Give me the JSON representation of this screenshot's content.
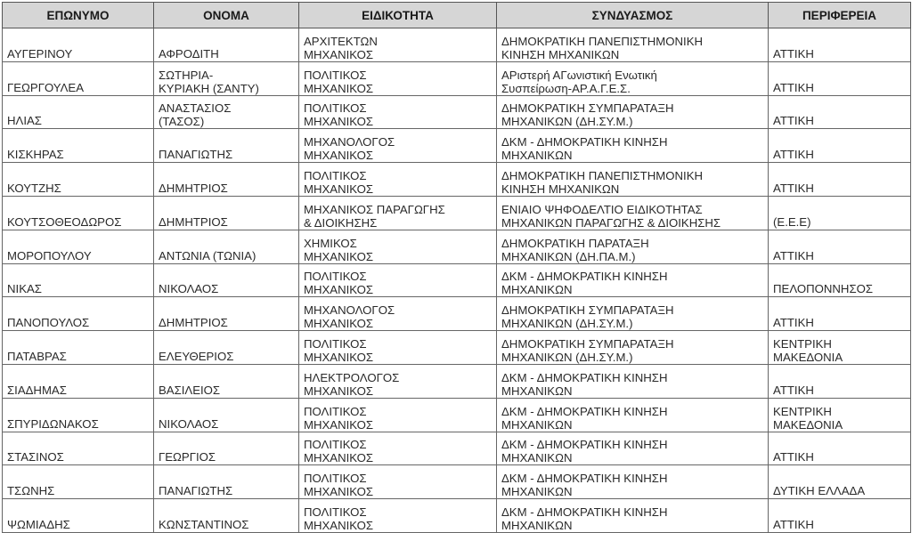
{
  "columns": [
    "ΕΠΩΝΥΜΟ",
    "ΟΝΟΜΑ",
    "ΕΙΔΙΚΟΤΗΤΑ",
    "ΣΥΝΔΥΑΣΜΟΣ",
    "ΠΕΡΙΦΕΡΕΙΑ"
  ],
  "rows": [
    [
      "ΑΥΓΕΡΙΝΟΥ",
      "ΑΦΡΟΔΙΤΗ",
      "ΑΡΧΙΤΕΚΤΩΝ\nΜΗΧΑΝΙΚΟΣ",
      "ΔΗΜΟΚΡΑΤΙΚΗ ΠΑΝΕΠΙΣΤΗΜΟΝΙΚΗ\nΚΙΝΗΣΗ ΜΗΧΑΝΙΚΩΝ",
      "ΑΤΤΙΚΗ"
    ],
    [
      "ΓΕΩΡΓΟΥΛΕΑ",
      "ΣΩΤΗΡΙΑ-\nΚΥΡΙΑΚΗ (ΣΑΝΤΥ)",
      "ΠΟΛΙΤΙΚΟΣ\nΜΗΧΑΝΙΚΟΣ",
      "ΑΡιστερή ΑΓωνιστική Ενωτική\nΣυσπείρωση-ΑΡ.Α.Γ.Ε.Σ.",
      "ΑΤΤΙΚΗ"
    ],
    [
      "ΗΛΙΑΣ",
      "ΑΝΑΣΤΑΣΙΟΣ\n(ΤΑΣΟΣ)",
      "ΠΟΛΙΤΙΚΟΣ\nΜΗΧΑΝΙΚΟΣ",
      "ΔΗΜΟΚΡΑΤΙΚΗ ΣΥΜΠΑΡΑΤΑΞΗ\nΜΗΧΑΝΙΚΩΝ (ΔΗ.ΣΥ.Μ.)",
      "ΑΤΤΙΚΗ"
    ],
    [
      "ΚΙΣΚΗΡΑΣ",
      "ΠΑΝΑΓΙΩΤΗΣ",
      "ΜΗΧΑΝΟΛΟΓΟΣ\nΜΗΧΑΝΙΚΟΣ",
      "ΔΚΜ - ΔΗΜΟΚΡΑΤΙΚΗ ΚΙΝΗΣΗ\nΜΗΧΑΝΙΚΩΝ",
      "ΑΤΤΙΚΗ"
    ],
    [
      "ΚΟΥΤΖΗΣ",
      "ΔΗΜΗΤΡΙΟΣ",
      "ΠΟΛΙΤΙΚΟΣ\nΜΗΧΑΝΙΚΟΣ",
      "ΔΗΜΟΚΡΑΤΙΚΗ ΠΑΝΕΠΙΣΤΗΜΟΝΙΚΗ\nΚΙΝΗΣΗ ΜΗΧΑΝΙΚΩΝ",
      "ΑΤΤΙΚΗ"
    ],
    [
      "ΚΟΥΤΣΟΘΕΟΔΩΡΟΣ",
      "ΔΗΜΗΤΡΙΟΣ",
      "ΜΗΧΑΝΙΚΟΣ ΠΑΡΑΓΩΓΗΣ\n& ΔΙΟΙΚΗΣΗΣ",
      "ΕΝΙΑΙΟ ΨΗΦΟΔΕΛΤΙΟ ΕΙΔΙΚΟΤΗΤΑΣ\nΜΗΧΑΝΙΚΩΝ ΠΑΡΑΓΩΓΗΣ & ΔΙΟΙΚΗΣΗΣ",
      "(Ε.Ε.Ε)"
    ],
    [
      "ΜΟΡΟΠΟΥΛΟΥ",
      "ΑΝΤΩΝΙΑ (ΤΩΝΙΑ)",
      "ΧΗΜΙΚΟΣ\nΜΗΧΑΝΙΚΟΣ",
      "ΔΗΜΟΚΡΑΤΙΚΗ ΠΑΡΑΤΑΞΗ\nΜΗΧΑΝΙΚΩΝ (ΔΗ.ΠΑ.Μ.)",
      "ΑΤΤΙΚΗ"
    ],
    [
      "ΝΙΚΑΣ",
      "ΝΙΚΟΛΑΟΣ",
      "ΠΟΛΙΤΙΚΟΣ\nΜΗΧΑΝΙΚΟΣ",
      "ΔΚΜ - ΔΗΜΟΚΡΑΤΙΚΗ ΚΙΝΗΣΗ\nΜΗΧΑΝΙΚΩΝ",
      "ΠΕΛΟΠΟΝΝΗΣΟΣ"
    ],
    [
      "ΠΑΝΟΠΟΥΛΟΣ",
      "ΔΗΜΗΤΡΙΟΣ",
      "ΜΗΧΑΝΟΛΟΓΟΣ\nΜΗΧΑΝΙΚΟΣ",
      "ΔΗΜΟΚΡΑΤΙΚΗ ΣΥΜΠΑΡΑΤΑΞΗ\nΜΗΧΑΝΙΚΩΝ (ΔΗ.ΣΥ.Μ.)",
      "ΑΤΤΙΚΗ"
    ],
    [
      "ΠΑΤΑΒΡΑΣ",
      "ΕΛΕΥΘΕΡΙΟΣ",
      "ΠΟΛΙΤΙΚΟΣ\nΜΗΧΑΝΙΚΟΣ",
      "ΔΗΜΟΚΡΑΤΙΚΗ ΣΥΜΠΑΡΑΤΑΞΗ\nΜΗΧΑΝΙΚΩΝ (ΔΗ.ΣΥ.Μ.)",
      "ΚΕΝΤΡΙΚΗ\nΜΑΚΕΔΟΝΙΑ"
    ],
    [
      "ΣΙΑΔΗΜΑΣ",
      "ΒΑΣΙΛΕΙΟΣ",
      "ΗΛΕΚΤΡΟΛΟΓΟΣ\nΜΗΧΑΝΙΚΟΣ",
      "ΔΚΜ - ΔΗΜΟΚΡΑΤΙΚΗ ΚΙΝΗΣΗ\nΜΗΧΑΝΙΚΩΝ",
      "ΑΤΤΙΚΗ"
    ],
    [
      "ΣΠΥΡΙΔΩΝΑΚΟΣ",
      "ΝΙΚΟΛΑΟΣ",
      "ΠΟΛΙΤΙΚΟΣ\nΜΗΧΑΝΙΚΟΣ",
      "ΔΚΜ - ΔΗΜΟΚΡΑΤΙΚΗ ΚΙΝΗΣΗ\nΜΗΧΑΝΙΚΩΝ",
      "ΚΕΝΤΡΙΚΗ\nΜΑΚΕΔΟΝΙΑ"
    ],
    [
      "ΣΤΑΣΙΝΟΣ",
      "ΓΕΩΡΓΙΟΣ",
      "ΠΟΛΙΤΙΚΟΣ\nΜΗΧΑΝΙΚΟΣ",
      "ΔΚΜ - ΔΗΜΟΚΡΑΤΙΚΗ ΚΙΝΗΣΗ\nΜΗΧΑΝΙΚΩΝ",
      "ΑΤΤΙΚΗ"
    ],
    [
      "ΤΣΩΝΗΣ",
      "ΠΑΝΑΓΙΩΤΗΣ",
      "ΠΟΛΙΤΙΚΟΣ\nΜΗΧΑΝΙΚΟΣ",
      "ΔΚΜ - ΔΗΜΟΚΡΑΤΙΚΗ ΚΙΝΗΣΗ\nΜΗΧΑΝΙΚΩΝ",
      "ΔΥΤΙΚΗ ΕΛΛΑΔΑ"
    ],
    [
      "ΨΩΜΙΑΔΗΣ",
      "ΚΩΝΣΤΑΝΤΙΝΟΣ",
      "ΠΟΛΙΤΙΚΟΣ\nΜΗΧΑΝΙΚΟΣ",
      "ΔΚΜ - ΔΗΜΟΚΡΑΤΙΚΗ ΚΙΝΗΣΗ\nΜΗΧΑΝΙΚΩΝ",
      "ΑΤΤΙΚΗ"
    ]
  ]
}
